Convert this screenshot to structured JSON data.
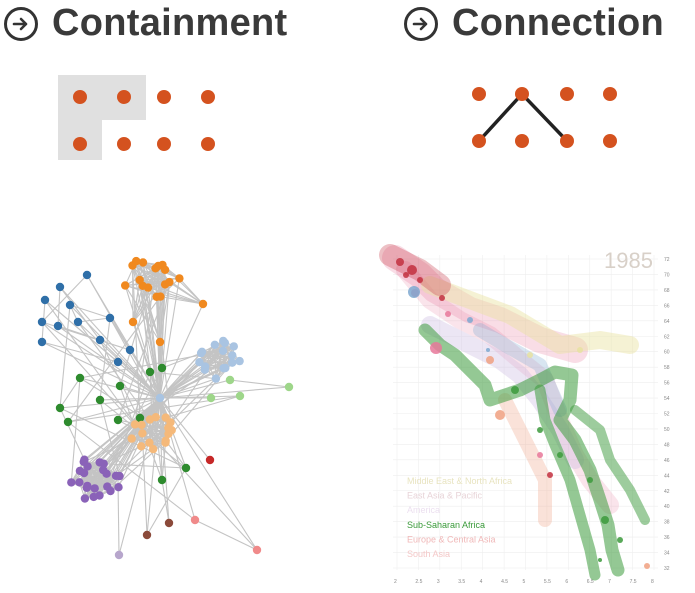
{
  "headings": {
    "left": "Containment",
    "right": "Connection",
    "icon": "arrow-right-circle-icon"
  },
  "colors": {
    "dot": "#d4521f",
    "highlight": "#e0e0e0",
    "edge": "#222222",
    "net_edge": "#c4c4c4",
    "blue": "#2f6fa8",
    "orange": "#f0891f",
    "light_blue": "#a9c4e2",
    "green": "#2e8b2e",
    "light_green": "#9ed68a",
    "purple": "#8a62b8",
    "light_orange": "#f5b97a",
    "red": "#c62828",
    "brown": "#8b4a3a",
    "pink": "#f08a8a",
    "lavender": "#b7a6cc",
    "bubble_green": "#3c9a3c",
    "bubble_pink": "#e8789a",
    "bubble_red": "#c23040",
    "bubble_yellow": "#e8e2a0",
    "bubble_blue": "#7ea8d0",
    "bubble_orange": "#f0a080",
    "bubble_lavender": "#c8b8e0"
  },
  "chart": {
    "year": "1985",
    "y_ticks": [
      "72",
      "70",
      "68",
      "66",
      "64",
      "62",
      "60",
      "58",
      "56",
      "54",
      "52",
      "50",
      "48",
      "46",
      "44",
      "42",
      "40",
      "38",
      "36",
      "34",
      "32"
    ],
    "x_ticks": [
      "2",
      "2.5",
      "3",
      "3.5",
      "4",
      "4.5",
      "5",
      "5.5",
      "6",
      "6.5",
      "7",
      "7.5",
      "8"
    ],
    "legend": [
      "Middle East & North Africa",
      "East Asia & Pacific",
      "America",
      "Sub-Saharan Africa",
      "Europe & Central Asia",
      "South Asia"
    ]
  }
}
